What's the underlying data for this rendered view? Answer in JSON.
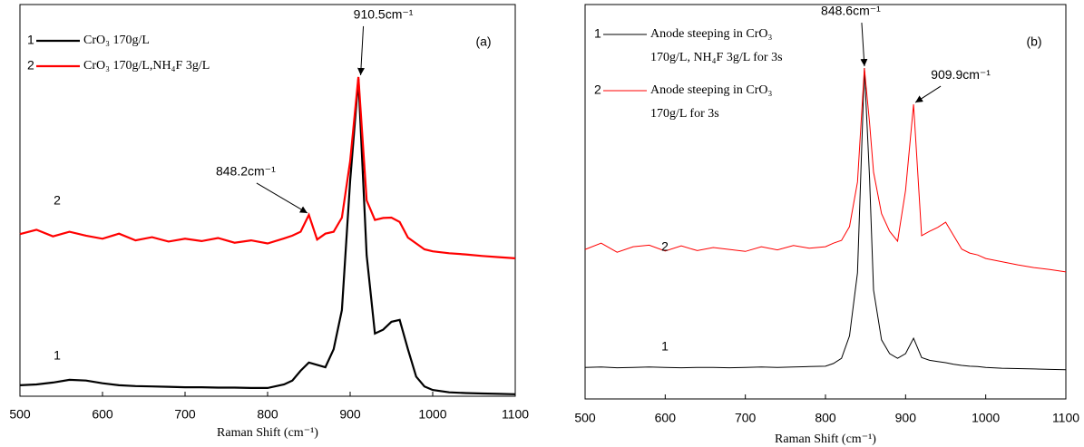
{
  "chart_data": [
    {
      "type": "line",
      "panel_label": "(a)",
      "xlabel": "Raman Shift (cm⁻¹)",
      "xlim": [
        500,
        1100
      ],
      "xticks": [
        500,
        600,
        700,
        800,
        900,
        1000,
        1100
      ],
      "ylim": [
        0,
        100
      ],
      "x": [
        500,
        520,
        540,
        560,
        580,
        600,
        620,
        640,
        660,
        680,
        700,
        720,
        740,
        760,
        780,
        800,
        820,
        830,
        840,
        850,
        860,
        870,
        880,
        890,
        900,
        910,
        920,
        930,
        940,
        950,
        960,
        970,
        980,
        990,
        1000,
        1020,
        1040,
        1060,
        1080,
        1100
      ],
      "series": [
        {
          "label": "1",
          "name": [
            "CrO₃ 170g/L"
          ],
          "color": "#000000",
          "values": [
            2.8,
            3.0,
            3.5,
            4.2,
            4.0,
            3.3,
            2.8,
            2.6,
            2.5,
            2.4,
            2.3,
            2.3,
            2.2,
            2.2,
            2.1,
            2.1,
            3.0,
            4.0,
            6.5,
            8.6,
            8.0,
            7.4,
            12,
            22,
            55,
            81,
            36,
            16,
            17,
            19,
            19.5,
            12,
            5,
            2.5,
            1.6,
            1.0,
            0.8,
            0.7,
            0.6,
            0.5
          ]
        },
        {
          "label": "2",
          "name": [
            "CrO₃ 170g/L,NH₄F 3g/L"
          ],
          "color": "#ff0000",
          "values": [
            41.4,
            42.5,
            40.8,
            42.0,
            41.0,
            40.2,
            41.5,
            39.8,
            40.6,
            39.5,
            40.2,
            39.6,
            40.4,
            39.2,
            39.8,
            39.0,
            40.3,
            41.0,
            42.0,
            46.3,
            40.0,
            41.5,
            42.0,
            45.6,
            60,
            81.5,
            50,
            45.0,
            45.5,
            45.6,
            44.5,
            40.5,
            39.0,
            37.5,
            37.0,
            36.5,
            36.2,
            35.8,
            35.5,
            35.2
          ]
        }
      ],
      "annotations": [
        {
          "text": "910.5cm⁻¹",
          "x": 910.5,
          "y": 81.5
        },
        {
          "text": "848.2cm⁻¹",
          "x": 848.2,
          "y": 46.3
        }
      ]
    },
    {
      "type": "line",
      "panel_label": "(b)",
      "xlabel": "Raman Shift (cm⁻¹)",
      "xlim": [
        500,
        1100
      ],
      "xticks": [
        500,
        600,
        700,
        800,
        900,
        1000,
        1100
      ],
      "ylim": [
        0,
        100
      ],
      "x": [
        500,
        520,
        540,
        560,
        580,
        600,
        620,
        640,
        660,
        680,
        700,
        720,
        740,
        760,
        780,
        800,
        810,
        820,
        830,
        840,
        848.6,
        855,
        860,
        870,
        880,
        890,
        900,
        909.9,
        920,
        930,
        940,
        950,
        960,
        970,
        980,
        990,
        1000,
        1020,
        1040,
        1060,
        1080,
        1100
      ],
      "series": [
        {
          "label": "1",
          "name": [
            "Anode steeping in CrO₃",
            "170g/L,  NH₄F 3g/L for 3s"
          ],
          "color": "#000000",
          "values": [
            8.0,
            8.1,
            7.9,
            8.0,
            8.1,
            8.0,
            7.9,
            8.0,
            8.0,
            7.9,
            8.0,
            8.1,
            8.0,
            8.1,
            8.2,
            8.3,
            9.0,
            10.3,
            16,
            32,
            83.9,
            56,
            27.6,
            15,
            11.5,
            10.3,
            11.5,
            15.4,
            10.5,
            9.8,
            9.5,
            9.2,
            8.8,
            8.5,
            8.3,
            8.2,
            8.0,
            7.8,
            7.7,
            7.6,
            7.5,
            7.4
          ]
        },
        {
          "label": "2",
          "name": [
            "Anode steeping in CrO₃",
            "170g/L for 3s"
          ],
          "color": "#ff0000",
          "values": [
            37.9,
            39.5,
            37.2,
            38.6,
            39.0,
            37.5,
            38.8,
            37.6,
            38.4,
            37.9,
            37.4,
            38.6,
            37.8,
            38.9,
            38.2,
            38.6,
            39.5,
            40.2,
            43.7,
            55,
            83.9,
            70,
            57.5,
            47,
            42.5,
            40,
            52.9,
            74.7,
            41.4,
            42.5,
            43.5,
            44.8,
            41.4,
            38,
            37,
            36.5,
            35.6,
            34.8,
            34.0,
            33.3,
            32.8,
            32.2
          ]
        }
      ],
      "annotations": [
        {
          "text": "848.6cm⁻¹",
          "x": 848.6,
          "y": 83.9
        },
        {
          "text": "909.9cm⁻¹",
          "x": 909.9,
          "y": 74.7
        }
      ]
    }
  ]
}
